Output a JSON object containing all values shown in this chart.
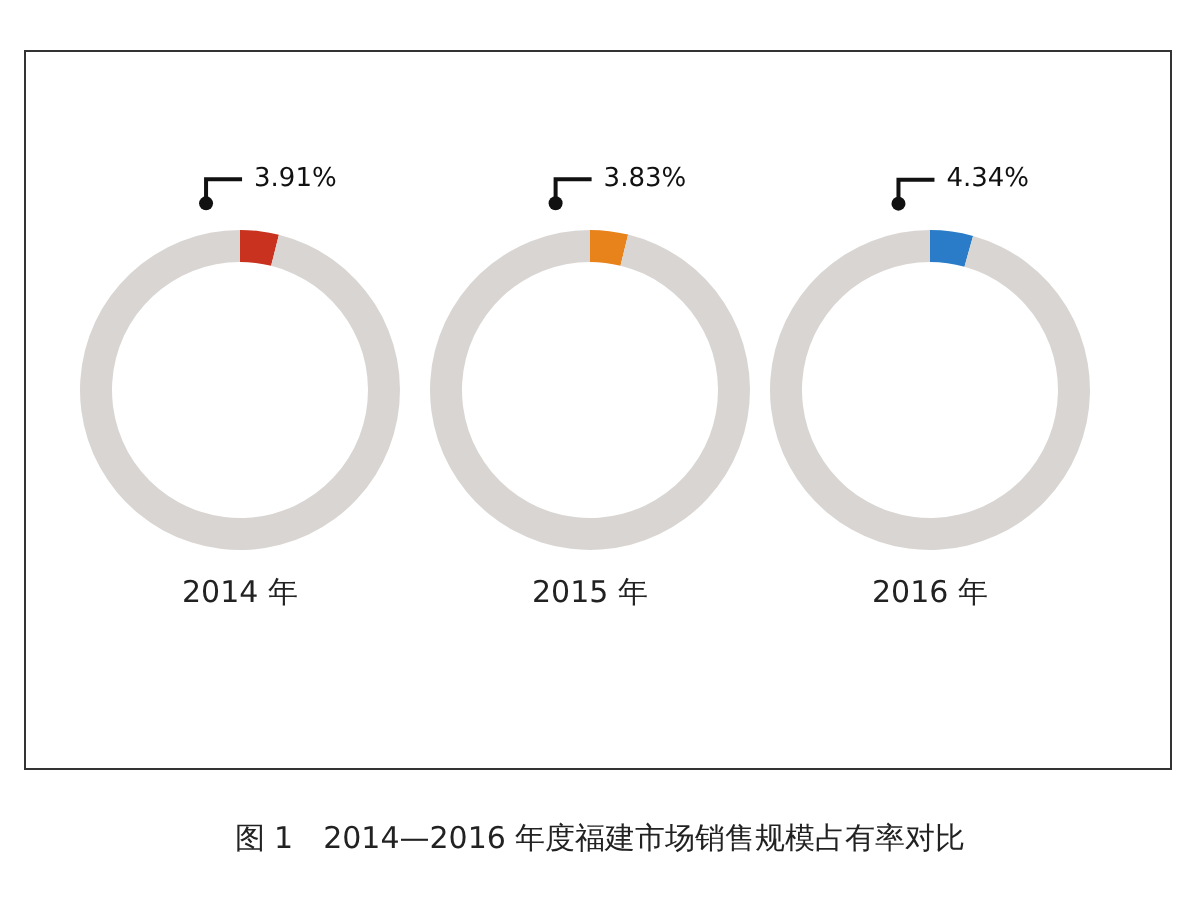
{
  "chart_data": [
    {
      "type": "donut",
      "xlabel": "2014 年",
      "categories": [
        null,
        null
      ],
      "values": [
        3.91,
        96.09
      ],
      "colors": [
        "#c8321e",
        "#d9d5d3"
      ],
      "value_labels": [
        "3.91%",
        null
      ],
      "legend": false,
      "annotations": [
        "图 1　2014—2016 年度福建市场销售规模占有率对比"
      ]
    },
    {
      "type": "donut",
      "xlabel": "2015 年",
      "categories": [
        null,
        null
      ],
      "values": [
        3.83,
        96.17
      ],
      "colors": [
        "#e8821a",
        "#d9d5d3"
      ],
      "value_labels": [
        "3.83%",
        null
      ],
      "legend": false
    },
    {
      "type": "donut",
      "xlabel": "2016 年",
      "categories": [
        null,
        null
      ],
      "values": [
        4.34,
        95.66
      ],
      "colors": [
        "#2a7cc8",
        "#d9d5d3"
      ],
      "value_labels": [
        "4.34%",
        null
      ],
      "legend": false
    }
  ]
}
